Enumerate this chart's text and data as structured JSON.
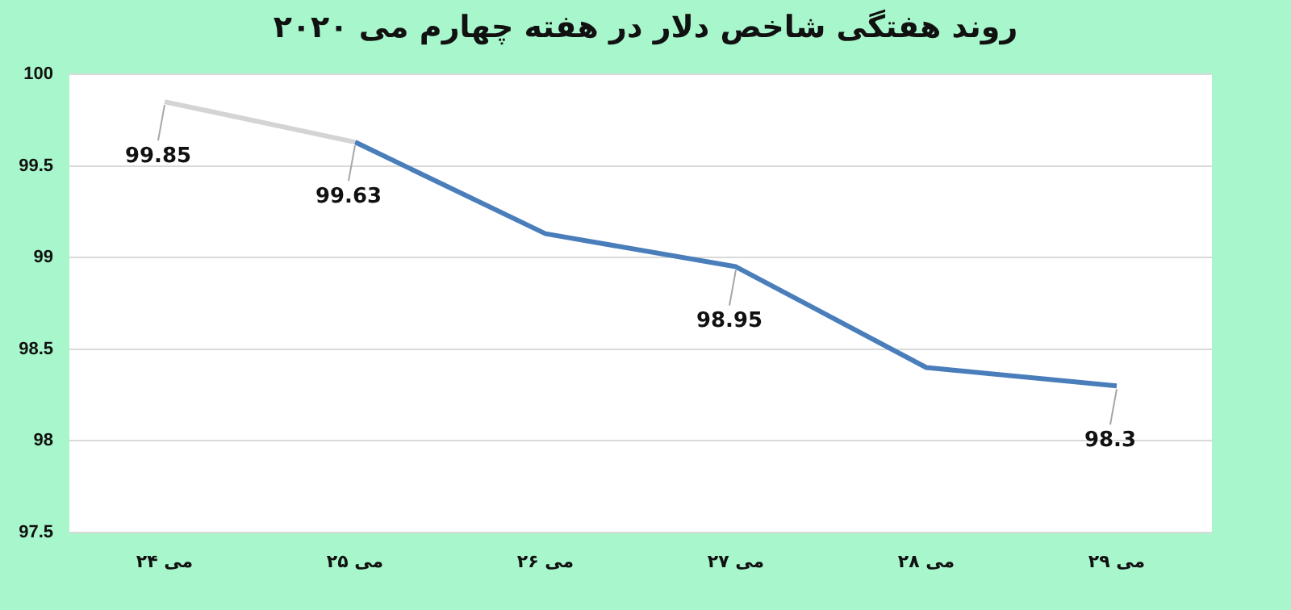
{
  "chart_data": {
    "type": "line",
    "title": "روند هفتگی شاخص دلار در هفته چهارم می ۲۰۲۰",
    "categories": [
      "می ۲۴",
      "می ۲۵",
      "می ۲۶",
      "می ۲۷",
      "می ۲۸",
      "می ۲۹"
    ],
    "series": [
      {
        "color": "#d4d4d4",
        "values": [
          99.85,
          99.63,
          null,
          null,
          null,
          null
        ],
        "value_labels": [
          "99.85",
          null,
          null,
          null,
          null,
          null
        ]
      },
      {
        "color": "#4a7ebb",
        "values": [
          null,
          99.63,
          99.13,
          98.95,
          98.4,
          98.3
        ],
        "value_labels": [
          null,
          "99.63",
          null,
          "98.95",
          null,
          "98.3"
        ]
      }
    ],
    "ylim": [
      97.5,
      100
    ],
    "yticks": [
      97.5,
      98,
      98.5,
      99,
      99.5,
      100
    ],
    "grid": "y",
    "legend": false,
    "marker": "none",
    "line_style": "solid"
  }
}
